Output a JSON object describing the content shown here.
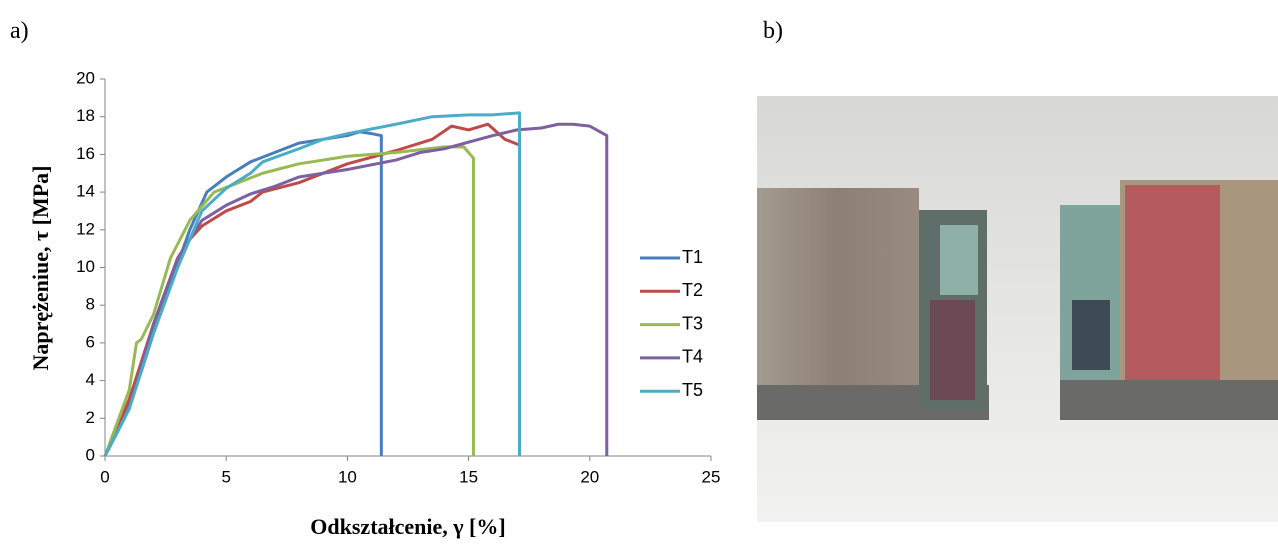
{
  "chart_data": {
    "type": "line",
    "panel_label": "a)",
    "ylabel": "Naprężeniue, τ [MPa]",
    "xlabel": "Odkształcenie, γ [%]",
    "xlim": [
      0,
      25
    ],
    "xticks": [
      0,
      5,
      10,
      15,
      20,
      25
    ],
    "ylim": [
      0,
      20
    ],
    "yticks": [
      0,
      2,
      4,
      6,
      8,
      10,
      12,
      14,
      16,
      18,
      20
    ],
    "grid": false,
    "legend": "right",
    "series": [
      {
        "name": "T1",
        "color": "#4a7ebb",
        "x": [
          0,
          0.8,
          1.5,
          2,
          2.8,
          3.5,
          4.2,
          5,
          6,
          7,
          8,
          9,
          10,
          10.5,
          11,
          11.4,
          11.4
        ],
        "values": [
          0,
          2,
          4.5,
          6.5,
          9.5,
          12,
          14,
          14.8,
          15.6,
          16.1,
          16.6,
          16.8,
          17,
          17.2,
          17.1,
          17,
          0
        ]
      },
      {
        "name": "T2",
        "color": "#be4b48",
        "x": [
          0,
          1,
          2,
          3,
          3.5,
          4,
          5,
          6,
          6.5,
          8,
          10,
          12,
          13.5,
          14.3,
          15,
          15.8,
          16.5,
          17.1
        ],
        "values": [
          0,
          3,
          7,
          10.5,
          11.5,
          12.2,
          13,
          13.5,
          14,
          14.5,
          15.5,
          16.2,
          16.8,
          17.5,
          17.3,
          17.6,
          16.8,
          16.5
        ]
      },
      {
        "name": "T3",
        "color": "#98b954",
        "x": [
          0,
          1,
          1.3,
          1.5,
          2,
          2.7,
          3.5,
          4.5,
          5.5,
          6.5,
          8,
          9,
          10,
          12,
          14,
          14.8,
          15.2,
          15.2
        ],
        "values": [
          0,
          3.5,
          6,
          6.2,
          7.5,
          10.5,
          12.5,
          14,
          14.5,
          15,
          15.5,
          15.7,
          15.9,
          16.1,
          16.4,
          16.4,
          15.8,
          0
        ]
      },
      {
        "name": "T4",
        "color": "#7d60a0",
        "x": [
          0,
          1,
          2,
          3,
          4,
          5,
          6,
          7,
          8,
          10,
          12,
          13,
          14,
          16,
          17,
          18,
          18.7,
          19.3,
          20,
          20.7,
          20.7
        ],
        "values": [
          0,
          2.5,
          7,
          10.5,
          12.5,
          13.3,
          13.9,
          14.3,
          14.8,
          15.2,
          15.7,
          16.1,
          16.3,
          17,
          17.3,
          17.4,
          17.6,
          17.6,
          17.5,
          17,
          0
        ]
      },
      {
        "name": "T5",
        "color": "#4bacc6",
        "x": [
          0,
          1,
          2,
          3,
          4,
          5,
          6,
          6.5,
          8,
          9,
          10,
          12,
          13.5,
          15,
          16,
          17.1,
          17.1
        ],
        "values": [
          0,
          2.5,
          6.5,
          10,
          13,
          14.2,
          15,
          15.6,
          16.3,
          16.8,
          17.1,
          17.6,
          18,
          18.1,
          18.1,
          18.2,
          0
        ]
      }
    ]
  },
  "photo_label": "b)"
}
